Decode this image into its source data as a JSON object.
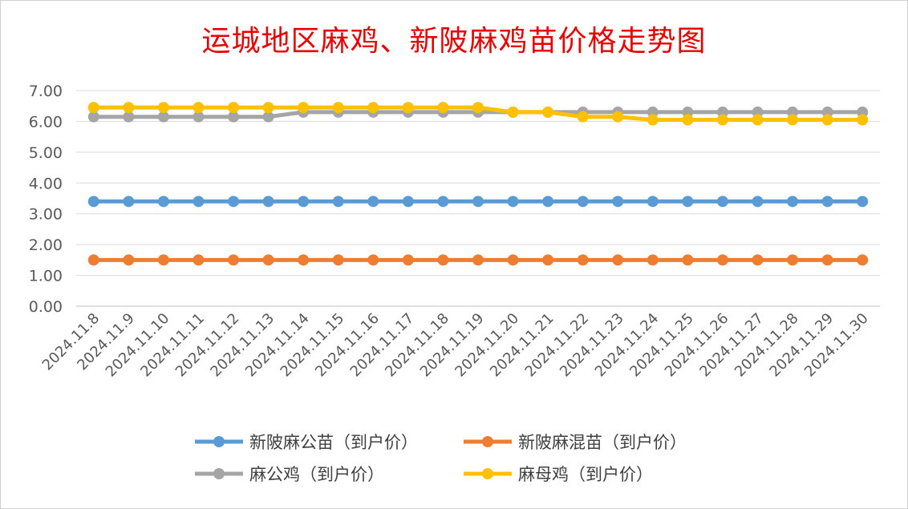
{
  "chart_data": {
    "type": "line",
    "title": "运城地区麻鸡、新陂麻鸡苗价格走势图",
    "xlabel": "",
    "ylabel": "",
    "ylim": [
      0,
      7
    ],
    "ytick_labels": [
      "0.00",
      "1.00",
      "2.00",
      "3.00",
      "4.00",
      "5.00",
      "6.00",
      "7.00"
    ],
    "categories": [
      "2024.11.8",
      "2024.11.9",
      "2024.11.10",
      "2024.11.11",
      "2024.11.12",
      "2024.11.13",
      "2024.11.14",
      "2024.11.15",
      "2024.11.16",
      "2024.11.17",
      "2024.11.18",
      "2024.11.19",
      "2024.11.20",
      "2024.11.21",
      "2024.11.22",
      "2024.11.23",
      "2024.11.24",
      "2024.11.25",
      "2024.11.26",
      "2024.11.27",
      "2024.11.28",
      "2024.11.29",
      "2024.11.30"
    ],
    "grid": true,
    "legend_position": "bottom",
    "series": [
      {
        "name": "新陂麻公苗（到户价）",
        "color": "#5b9bd5",
        "values": [
          3.4,
          3.4,
          3.4,
          3.4,
          3.4,
          3.4,
          3.4,
          3.4,
          3.4,
          3.4,
          3.4,
          3.4,
          3.4,
          3.4,
          3.4,
          3.4,
          3.4,
          3.4,
          3.4,
          3.4,
          3.4,
          3.4,
          3.4
        ]
      },
      {
        "name": "新陂麻混苗（到户价）",
        "color": "#ed7d31",
        "values": [
          1.5,
          1.5,
          1.5,
          1.5,
          1.5,
          1.5,
          1.5,
          1.5,
          1.5,
          1.5,
          1.5,
          1.5,
          1.5,
          1.5,
          1.5,
          1.5,
          1.5,
          1.5,
          1.5,
          1.5,
          1.5,
          1.5,
          1.5
        ]
      },
      {
        "name": "麻公鸡（到户价）",
        "color": "#a5a5a5",
        "values": [
          6.15,
          6.15,
          6.15,
          6.15,
          6.15,
          6.15,
          6.3,
          6.3,
          6.3,
          6.3,
          6.3,
          6.3,
          6.3,
          6.3,
          6.3,
          6.3,
          6.3,
          6.3,
          6.3,
          6.3,
          6.3,
          6.3,
          6.3
        ]
      },
      {
        "name": "麻母鸡（到户价）",
        "color": "#ffc000",
        "values": [
          6.45,
          6.45,
          6.45,
          6.45,
          6.45,
          6.45,
          6.45,
          6.45,
          6.45,
          6.45,
          6.45,
          6.45,
          6.3,
          6.3,
          6.15,
          6.15,
          6.05,
          6.05,
          6.05,
          6.05,
          6.05,
          6.05,
          6.05
        ]
      }
    ]
  }
}
